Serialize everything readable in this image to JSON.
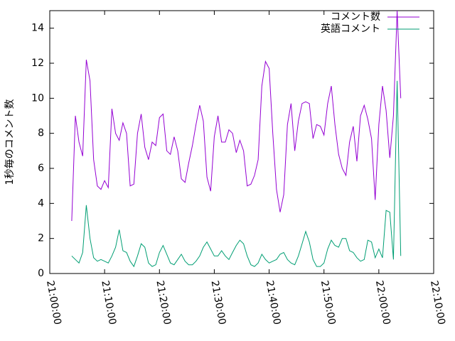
{
  "chart_data": {
    "type": "line",
    "ylabel": "1秒毎のコメント数",
    "x": [
      "21:04:00",
      "21:04:40",
      "21:05:20",
      "21:06:00",
      "21:06:40",
      "21:07:20",
      "21:08:00",
      "21:08:40",
      "21:09:20",
      "21:10:00",
      "21:10:40",
      "21:11:20",
      "21:12:00",
      "21:12:40",
      "21:13:20",
      "21:14:00",
      "21:14:40",
      "21:15:20",
      "21:16:00",
      "21:16:40",
      "21:17:20",
      "21:18:00",
      "21:18:40",
      "21:19:20",
      "21:20:00",
      "21:20:40",
      "21:21:20",
      "21:22:00",
      "21:22:40",
      "21:23:20",
      "21:24:00",
      "21:24:40",
      "21:25:20",
      "21:26:00",
      "21:26:40",
      "21:27:20",
      "21:28:00",
      "21:28:40",
      "21:29:20",
      "21:30:00",
      "21:30:40",
      "21:31:20",
      "21:32:00",
      "21:32:40",
      "21:33:20",
      "21:34:00",
      "21:34:40",
      "21:35:20",
      "21:36:00",
      "21:36:40",
      "21:37:20",
      "21:38:00",
      "21:38:40",
      "21:39:20",
      "21:40:00",
      "21:40:40",
      "21:41:20",
      "21:42:00",
      "21:42:40",
      "21:43:20",
      "21:44:00",
      "21:44:40",
      "21:45:20",
      "21:46:00",
      "21:46:40",
      "21:47:20",
      "21:48:00",
      "21:48:40",
      "21:49:20",
      "21:50:00",
      "21:50:40",
      "21:51:20",
      "21:52:00",
      "21:52:40",
      "21:53:20",
      "21:54:00",
      "21:54:40",
      "21:55:20",
      "21:56:00",
      "21:56:40",
      "21:57:20",
      "21:58:00",
      "21:58:40",
      "21:59:20",
      "22:00:00",
      "22:00:40",
      "22:01:20",
      "22:02:00",
      "22:02:40",
      "22:03:20",
      "22:04:00"
    ],
    "series": [
      {
        "name": "コメント数",
        "color": "#9400d3",
        "values": [
          3,
          9,
          7.5,
          6.7,
          12.2,
          11,
          6.5,
          5,
          4.8,
          5.3,
          4.9,
          9.4,
          8,
          7.6,
          8.6,
          8,
          5,
          5.1,
          8,
          9.1,
          7.2,
          6.5,
          7.5,
          7.3,
          8.9,
          9.1,
          7,
          6.8,
          7.8,
          7,
          5.4,
          5.2,
          6.3,
          7.3,
          8.5,
          9.6,
          8.7,
          5.5,
          4.7,
          7.8,
          9,
          7.5,
          7.5,
          8.2,
          8,
          6.9,
          7.6,
          7,
          5,
          5.1,
          5.6,
          6.5,
          10.7,
          12.1,
          11.7,
          8,
          4.8,
          3.5,
          4.5,
          8.5,
          9.7,
          7,
          8.7,
          9.7,
          9.8,
          9.7,
          7.7,
          8.5,
          8.4,
          7.9,
          9.7,
          10.7,
          8.5,
          6.8,
          6,
          5.6,
          7.5,
          8.4,
          6.4,
          9,
          9.6,
          8.8,
          7.7,
          4.2,
          8.5,
          10.7,
          9.3,
          6.6,
          9,
          15,
          10
        ]
      },
      {
        "name": "英語コメント",
        "color": "#009e73",
        "values": [
          1,
          0.8,
          0.6,
          1.2,
          3.9,
          2,
          0.9,
          0.7,
          0.8,
          0.7,
          0.6,
          1,
          1.5,
          2.5,
          1.3,
          1.2,
          0.7,
          0.4,
          1,
          1.7,
          1.5,
          0.6,
          0.4,
          0.5,
          1.2,
          1.6,
          1.1,
          0.6,
          0.5,
          0.8,
          1.1,
          0.7,
          0.5,
          0.5,
          0.7,
          1,
          1.5,
          1.8,
          1.4,
          1,
          1,
          1.3,
          1,
          0.8,
          1.2,
          1.6,
          1.9,
          1.7,
          1,
          0.5,
          0.4,
          0.6,
          1.1,
          0.8,
          0.6,
          0.7,
          0.8,
          1.1,
          1.2,
          0.8,
          0.6,
          0.5,
          1,
          1.7,
          2.4,
          1.8,
          0.8,
          0.4,
          0.4,
          0.6,
          1.4,
          1.9,
          1.6,
          1.5,
          2,
          2,
          1.3,
          1.2,
          0.9,
          0.7,
          0.8,
          1.9,
          1.8,
          0.9,
          1.4,
          0.9,
          3.6,
          3.5,
          0.8,
          11,
          1
        ]
      }
    ],
    "xlim": [
      "21:00:00",
      "22:10:00"
    ],
    "xticks": [
      "21:00:00",
      "21:10:00",
      "21:20:00",
      "21:30:00",
      "21:40:00",
      "21:50:00",
      "22:00:00",
      "22:10:00"
    ],
    "ylim": [
      0,
      15
    ],
    "yticks": [
      0,
      2,
      4,
      6,
      8,
      10,
      12,
      14
    ],
    "legend": "top-right"
  }
}
